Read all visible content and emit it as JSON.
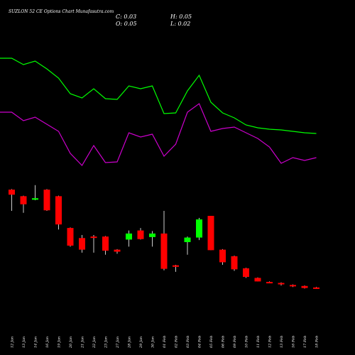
{
  "chart_data": {
    "type": "candlestick",
    "title": "SUZLON 52 CE Options  Chart Munafasutra.com",
    "ohlc_readout": {
      "c_label": "C: 0.03",
      "h_label": "H: 0.05",
      "o_label": "O: 0.05",
      "l_label": "L: 0.02"
    },
    "colors": {
      "background": "#000000",
      "up": "#00ff00",
      "down": "#ff0000",
      "wick": "#ffffff",
      "upper_line": "#00ff00",
      "lower_line": "#cc00cc"
    },
    "price_range": [
      0,
      2.9
    ],
    "categories": [
      "12 Jan",
      "13 Jan",
      "14 Jan",
      "16 Jan",
      "19 Jan",
      "20 Jan",
      "21 Jan",
      "22 Jan",
      "23 Jan",
      "27 Jan",
      "28 Jan",
      "29 Jan",
      "30 Jan",
      "01 Feb",
      "02 Feb",
      "03 Feb",
      "04 Feb",
      "05 Feb",
      "06 Feb",
      "09 Feb",
      "10 Feb",
      "11 Feb",
      "12 Feb",
      "13 Feb",
      "16 Feb",
      "17 Feb",
      "18 Feb"
    ],
    "candles": [
      {
        "o": 2.8,
        "h": 2.81,
        "l": 2.38,
        "c": 2.7
      },
      {
        "o": 2.67,
        "h": 2.68,
        "l": 2.34,
        "c": 2.51
      },
      {
        "o": 2.6,
        "h": 2.89,
        "l": 2.59,
        "c": 2.63
      },
      {
        "o": 2.8,
        "h": 2.81,
        "l": 2.38,
        "c": 2.39
      },
      {
        "o": 2.67,
        "h": 2.68,
        "l": 2.01,
        "c": 2.11
      },
      {
        "o": 2.04,
        "h": 2.05,
        "l": 1.67,
        "c": 1.69
      },
      {
        "o": 1.84,
        "h": 1.9,
        "l": 1.55,
        "c": 1.61
      },
      {
        "o": 1.87,
        "h": 1.9,
        "l": 1.55,
        "c": 1.85
      },
      {
        "o": 1.87,
        "h": 1.88,
        "l": 1.51,
        "c": 1.59
      },
      {
        "o": 1.61,
        "h": 1.62,
        "l": 1.53,
        "c": 1.57
      },
      {
        "o": 1.81,
        "h": 1.99,
        "l": 1.67,
        "c": 1.93
      },
      {
        "o": 1.99,
        "h": 2.04,
        "l": 1.81,
        "c": 1.82
      },
      {
        "o": 1.86,
        "h": 1.98,
        "l": 1.67,
        "c": 1.93
      },
      {
        "o": 1.93,
        "h": 2.38,
        "l": 1.2,
        "c": 1.23
      },
      {
        "o": 1.3,
        "h": 1.31,
        "l": 1.17,
        "c": 1.27
      },
      {
        "o": 1.76,
        "h": 1.87,
        "l": 1.51,
        "c": 1.85
      },
      {
        "o": 1.85,
        "h": 2.24,
        "l": 1.8,
        "c": 2.21
      },
      {
        "o": 2.28,
        "h": 2.28,
        "l": 1.6,
        "c": 1.6
      },
      {
        "o": 1.61,
        "h": 1.62,
        "l": 1.31,
        "c": 1.36
      },
      {
        "o": 1.48,
        "h": 1.49,
        "l": 1.19,
        "c": 1.22
      },
      {
        "o": 1.24,
        "h": 1.25,
        "l": 1.05,
        "c": 1.07
      },
      {
        "o": 1.05,
        "h": 1.06,
        "l": 0.98,
        "c": 0.98
      },
      {
        "o": 0.97,
        "h": 0.98,
        "l": 0.95,
        "c": 0.96
      },
      {
        "o": 0.95,
        "h": 0.96,
        "l": 0.9,
        "c": 0.93
      },
      {
        "o": 0.91,
        "h": 0.92,
        "l": 0.87,
        "c": 0.89
      },
      {
        "o": 0.89,
        "h": 0.9,
        "l": 0.84,
        "c": 0.85
      },
      {
        "o": 0.86,
        "h": 0.87,
        "l": 0.83,
        "c": 0.84
      }
    ],
    "line_x": [
      -1,
      0,
      1,
      2,
      3,
      4,
      5,
      6,
      7,
      8,
      9,
      10,
      11,
      12,
      13,
      14,
      15,
      16,
      17,
      18,
      19,
      20,
      21,
      22,
      23,
      24,
      25,
      26
    ],
    "upper_line": [
      82,
      82,
      91,
      86,
      97,
      110,
      132,
      138,
      125,
      139,
      140,
      121,
      125,
      121,
      160,
      159,
      128,
      106,
      144,
      159,
      166,
      176,
      180,
      182,
      183,
      185,
      187,
      188
    ],
    "lower_line": [
      158,
      158,
      170,
      165,
      175,
      185,
      216,
      233,
      205,
      229,
      228,
      187,
      193,
      189,
      220,
      203,
      158,
      146,
      185,
      181,
      179,
      187,
      195,
      207,
      230,
      222,
      226,
      222
    ]
  }
}
